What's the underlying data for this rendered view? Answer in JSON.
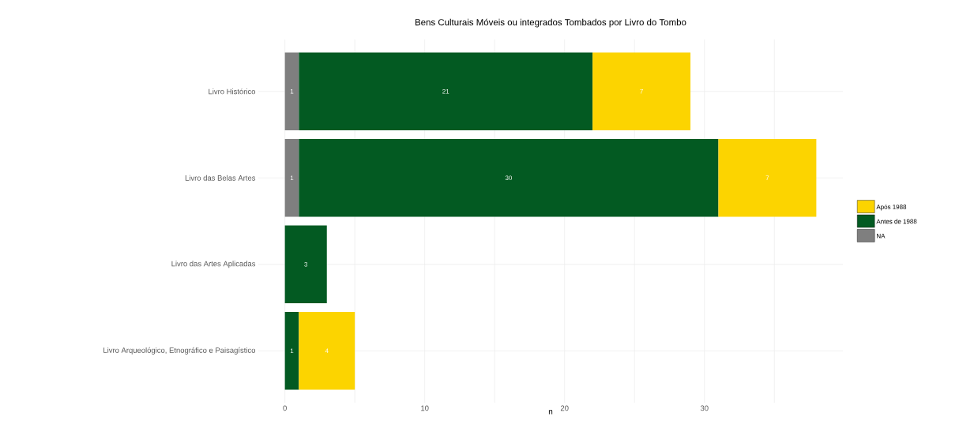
{
  "chart_data": {
    "type": "bar",
    "orientation": "horizontal",
    "stacked": true,
    "title": "Bens Culturais Móveis ou integrados Tombados por Livro do Tombo",
    "xlabel": "n",
    "categories": [
      "Livro Histórico",
      "Livro das Belas Artes",
      "Livro das Artes Aplicadas",
      "Livro Arqueológico, Etnográfico e Paisagístico"
    ],
    "series": [
      {
        "name": "NA",
        "color": "#7f7f7f",
        "values": [
          1,
          1,
          null,
          null
        ]
      },
      {
        "name": "Antes de 1988",
        "color": "#035a22",
        "values": [
          21,
          30,
          3,
          1
        ]
      },
      {
        "name": "Após 1988",
        "color": "#fcd400",
        "values": [
          7,
          7,
          null,
          4
        ]
      }
    ],
    "xlim": [
      -1.9,
      39.9
    ],
    "xticks": [
      0,
      {
        "value": 5,
        "label": null
      },
      10,
      {
        "value": 15,
        "label": null
      },
      20,
      {
        "value": 25,
        "label": null
      },
      30,
      {
        "value": 35,
        "label": null
      }
    ],
    "data_labels": true,
    "grid": true,
    "legend": "right"
  }
}
